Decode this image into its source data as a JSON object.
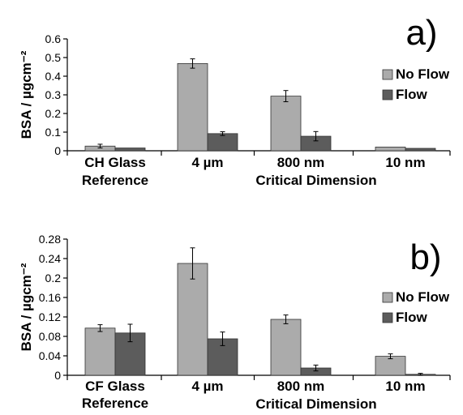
{
  "chart_data": [
    {
      "type": "bar",
      "panel_label": "a)",
      "categories": [
        {
          "line1": "CH Glass",
          "line2": "Reference"
        },
        {
          "line1": "4 µm",
          "line2": ""
        },
        {
          "line1": "800 nm",
          "line2": ""
        },
        {
          "line1": "10 nm",
          "line2": ""
        }
      ],
      "series": [
        {
          "name": "No Flow",
          "color": "#ababab",
          "values": [
            0.025,
            0.468,
            0.293,
            0.02
          ],
          "errors": [
            0.01,
            0.025,
            0.03,
            0.0
          ]
        },
        {
          "name": "Flow",
          "color": "#5c5c5c",
          "values": [
            0.015,
            0.092,
            0.078,
            0.013
          ],
          "errors": [
            0.0,
            0.01,
            0.025,
            0.0
          ]
        }
      ],
      "ylabel": "BSA / µgcm⁻²",
      "xlabel": "Critical Dimension",
      "ylim": [
        0,
        0.6
      ],
      "yticks": [
        "0",
        "0.1",
        "0.2",
        "0.3",
        "0.4",
        "0.5",
        "0.6"
      ],
      "ytick_values": [
        0,
        0.1,
        0.2,
        0.3,
        0.4,
        0.5,
        0.6
      ],
      "legend_position": "right",
      "grid": false
    },
    {
      "type": "bar",
      "panel_label": "b)",
      "categories": [
        {
          "line1": "CF Glass",
          "line2": "Reference"
        },
        {
          "line1": "4 µm",
          "line2": ""
        },
        {
          "line1": "800 nm",
          "line2": ""
        },
        {
          "line1": "10 nm",
          "line2": ""
        }
      ],
      "series": [
        {
          "name": "No Flow",
          "color": "#ababab",
          "values": [
            0.097,
            0.23,
            0.115,
            0.039
          ],
          "errors": [
            0.007,
            0.032,
            0.009,
            0.005
          ]
        },
        {
          "name": "Flow",
          "color": "#5c5c5c",
          "values": [
            0.087,
            0.075,
            0.015,
            0.002
          ],
          "errors": [
            0.018,
            0.014,
            0.006,
            0.002
          ]
        }
      ],
      "ylabel": "BSA / µgcm⁻²",
      "xlabel": "Critical Dimension",
      "ylim": [
        0,
        0.28
      ],
      "yticks": [
        "0",
        "0.04",
        "0.08",
        "0.12",
        "0.16",
        "0.2",
        "0.24",
        "0.28"
      ],
      "ytick_values": [
        0,
        0.04,
        0.08,
        0.12,
        0.16,
        0.2,
        0.24,
        0.28
      ],
      "legend_position": "right",
      "grid": false
    }
  ]
}
